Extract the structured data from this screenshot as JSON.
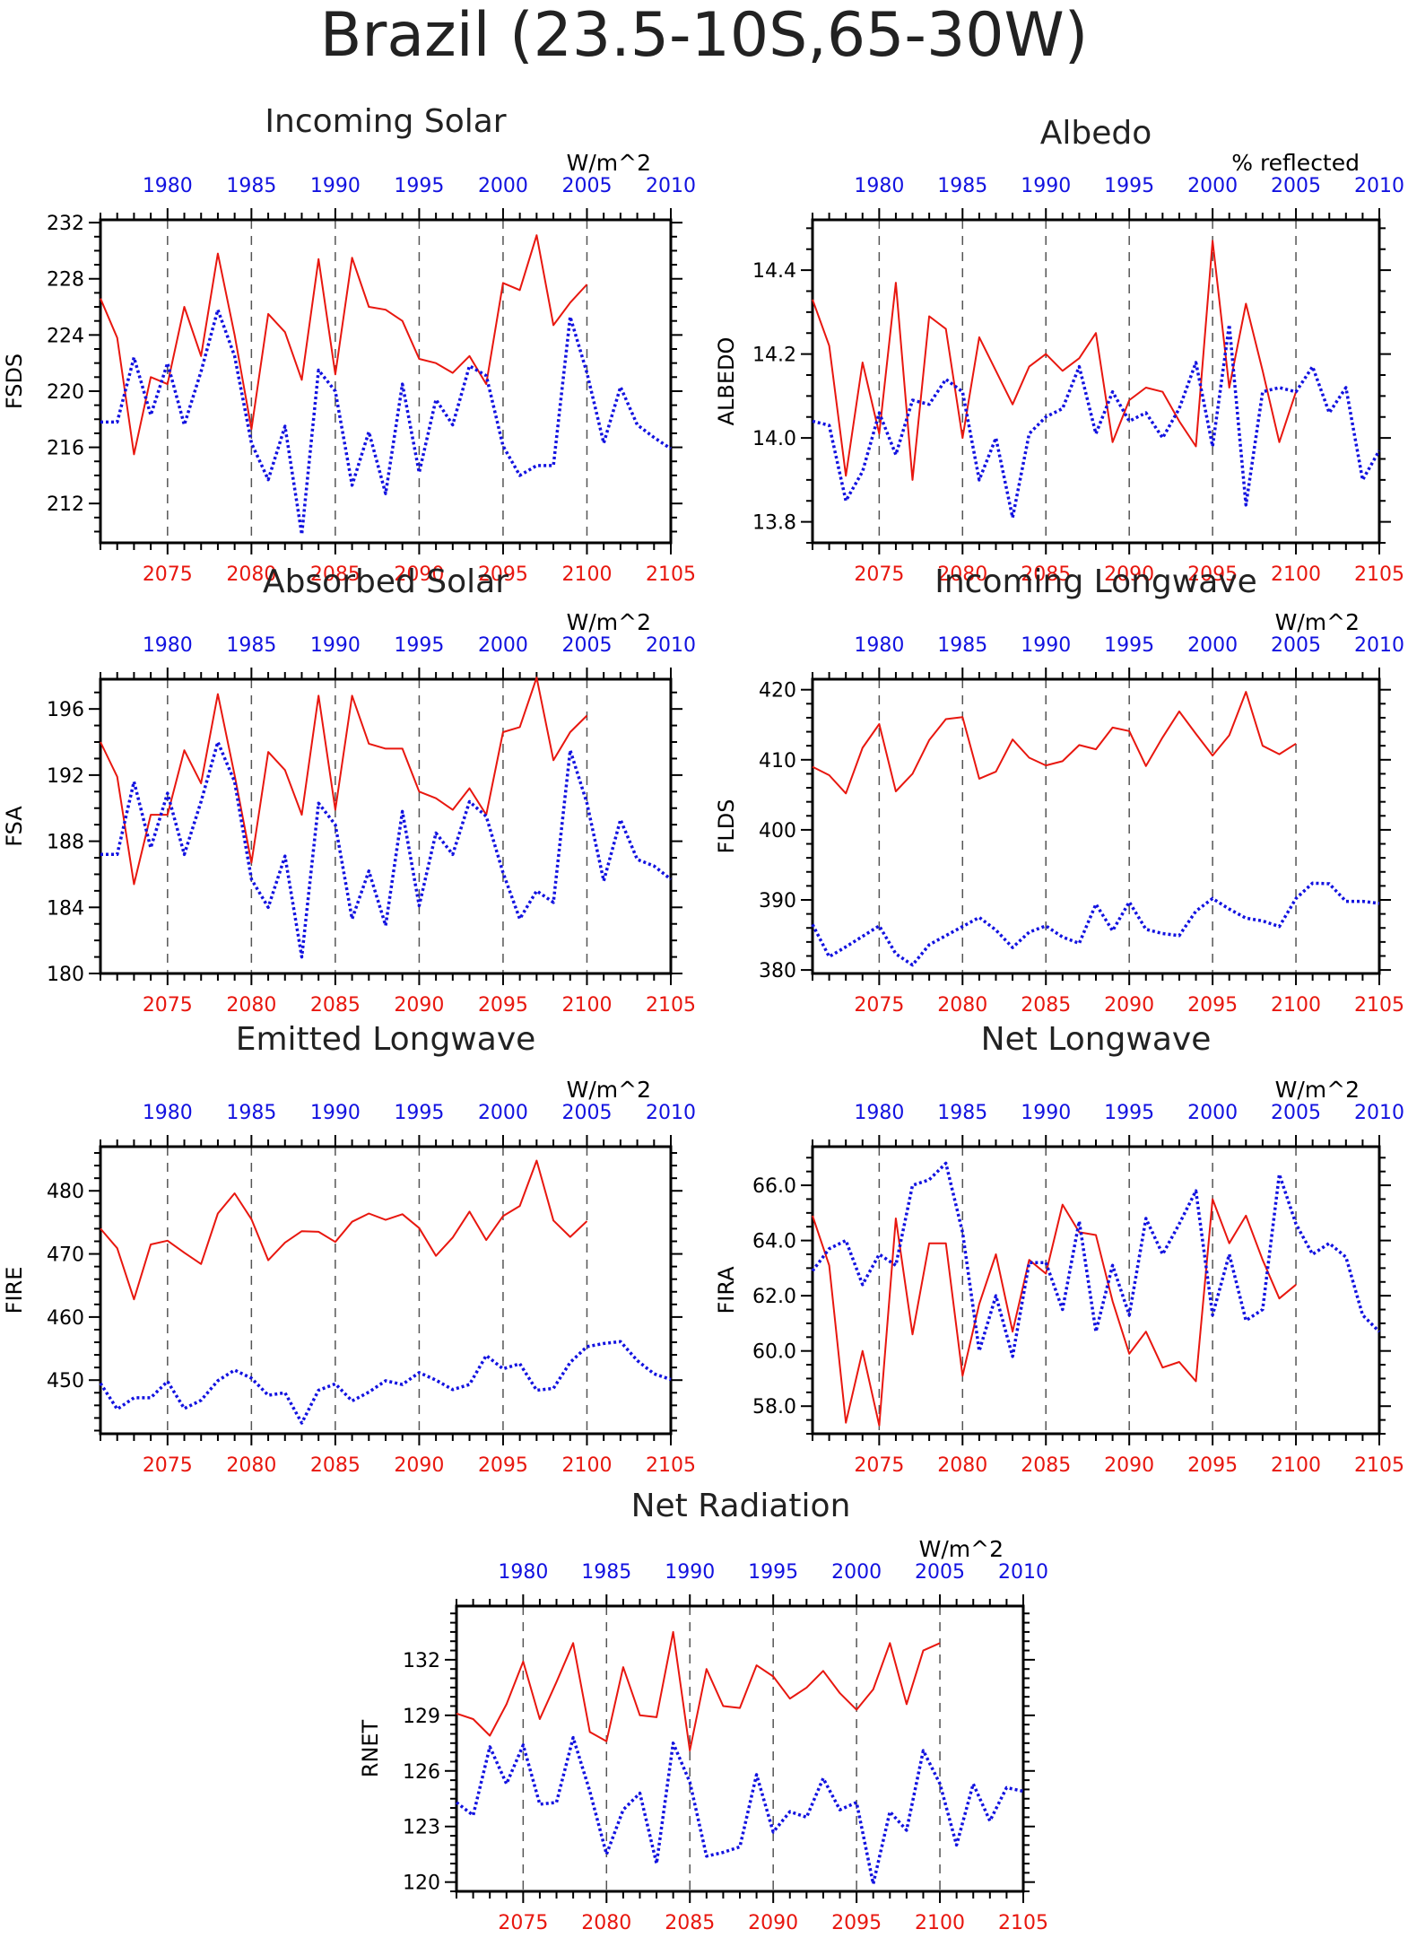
{
  "title": "Brazil (23.5-10S,65-30W)",
  "colors": {
    "future": "#e8170f",
    "historical": "#1212e0",
    "axis": "#000000"
  },
  "chart_data": [
    {
      "id": "fsds",
      "type": "line",
      "title": "Incoming Solar",
      "ylabel": "FSDS",
      "units": "W/m^2",
      "ylim": [
        209.2,
        232.2
      ],
      "yticks": [
        212,
        216,
        220,
        224,
        228,
        232
      ],
      "ytick_labels": [
        "212",
        "216",
        "220",
        "224",
        "228",
        "232"
      ],
      "yminor": 1,
      "xlim_bottom": [
        2071,
        2105
      ],
      "xticks_bottom": [
        2075,
        2080,
        2085,
        2090,
        2095,
        2100,
        2105
      ],
      "xlim_top": [
        1976,
        2010
      ],
      "xticks_top": [
        1980,
        1985,
        1990,
        1995,
        2000,
        2005,
        2010
      ],
      "series": [
        {
          "axis": "bottom",
          "style": "solid",
          "x_start": 2071,
          "values": [
            226.6,
            223.8,
            215.5,
            221.0,
            220.5,
            226.0,
            222.5,
            229.8,
            224.0,
            217.3,
            225.5,
            224.2,
            220.8,
            229.4,
            221.2,
            229.5,
            226.0,
            225.8,
            225.0,
            222.3,
            222.0,
            221.3,
            222.5,
            220.5,
            227.7,
            227.2,
            231.1,
            224.7,
            226.3,
            227.6
          ]
        },
        {
          "axis": "top",
          "style": "dotted",
          "x_start": 1976,
          "values": [
            217.8,
            217.8,
            222.4,
            218.3,
            222.0,
            217.6,
            221.4,
            225.8,
            222.5,
            216.3,
            213.7,
            217.5,
            209.8,
            221.5,
            220.0,
            213.3,
            217.1,
            212.7,
            220.5,
            214.2,
            219.4,
            217.6,
            221.8,
            221.1,
            216.1,
            214.0,
            214.7,
            214.7,
            225.3,
            221.3,
            216.3,
            220.3,
            217.6,
            216.7,
            215.9
          ]
        }
      ]
    },
    {
      "id": "albedo",
      "type": "line",
      "title": "Albedo",
      "ylabel": "ALBEDO",
      "units": "% reflected",
      "ylim": [
        13.75,
        14.52
      ],
      "yticks": [
        13.8,
        14.0,
        14.2,
        14.4
      ],
      "ytick_labels": [
        "13.8",
        "14.0",
        "14.2",
        "14.4"
      ],
      "yminor": 0.05,
      "xlim_bottom": [
        2071,
        2105
      ],
      "xticks_bottom": [
        2075,
        2080,
        2085,
        2090,
        2095,
        2100,
        2105
      ],
      "xlim_top": [
        1976,
        2010
      ],
      "xticks_top": [
        1980,
        1985,
        1990,
        1995,
        2000,
        2005,
        2010
      ],
      "series": [
        {
          "axis": "bottom",
          "style": "solid",
          "x_start": 2071,
          "values": [
            14.33,
            14.22,
            13.91,
            14.18,
            14.01,
            14.37,
            13.9,
            14.29,
            14.26,
            14.0,
            14.24,
            14.16,
            14.08,
            14.17,
            14.2,
            14.16,
            14.19,
            14.25,
            13.99,
            14.09,
            14.12,
            14.11,
            14.04,
            13.98,
            14.47,
            14.12,
            14.32,
            14.16,
            13.99,
            14.11
          ]
        },
        {
          "axis": "top",
          "style": "dotted",
          "x_start": 1976,
          "values": [
            14.04,
            14.03,
            13.85,
            13.92,
            14.06,
            13.96,
            14.09,
            14.08,
            14.14,
            14.11,
            13.9,
            14.0,
            13.81,
            14.01,
            14.05,
            14.07,
            14.17,
            14.01,
            14.11,
            14.04,
            14.06,
            14.0,
            14.07,
            14.18,
            13.98,
            14.27,
            13.84,
            14.11,
            14.12,
            14.11,
            14.17,
            14.06,
            14.12,
            13.9,
            13.97
          ]
        }
      ]
    },
    {
      "id": "fsa",
      "type": "line",
      "title": "Absorbed Solar",
      "ylabel": "FSA",
      "units": "W/m^2",
      "ylim": [
        180,
        197.8
      ],
      "yticks": [
        180,
        184,
        188,
        192,
        196
      ],
      "ytick_labels": [
        "180",
        "184",
        "188",
        "192",
        "196"
      ],
      "yminor": 1,
      "xlim_bottom": [
        2071,
        2105
      ],
      "xticks_bottom": [
        2075,
        2080,
        2085,
        2090,
        2095,
        2100,
        2105
      ],
      "xlim_top": [
        1976,
        2010
      ],
      "xticks_top": [
        1980,
        1985,
        1990,
        1995,
        2000,
        2005,
        2010
      ],
      "series": [
        {
          "axis": "bottom",
          "style": "solid",
          "x_start": 2071,
          "values": [
            194.0,
            191.9,
            185.4,
            189.6,
            189.6,
            193.5,
            191.5,
            196.9,
            192.0,
            186.7,
            193.4,
            192.3,
            189.6,
            196.8,
            189.9,
            196.8,
            193.9,
            193.6,
            193.6,
            191.0,
            190.6,
            189.9,
            191.2,
            189.6,
            194.6,
            194.9,
            197.9,
            192.9,
            194.6,
            195.6
          ]
        },
        {
          "axis": "top",
          "style": "dotted",
          "x_start": 1976,
          "values": [
            187.2,
            187.2,
            191.6,
            187.6,
            190.9,
            187.2,
            190.4,
            194.0,
            191.6,
            185.7,
            184.0,
            187.1,
            181.0,
            190.3,
            189.0,
            183.3,
            186.2,
            182.9,
            189.8,
            184.1,
            188.5,
            187.2,
            190.4,
            189.5,
            186.1,
            183.3,
            185.0,
            184.3,
            193.5,
            190.3,
            185.6,
            189.3,
            186.9,
            186.5,
            185.7
          ]
        }
      ]
    },
    {
      "id": "flds",
      "type": "line",
      "title": "Incoming Longwave",
      "ylabel": "FLDS",
      "units": "W/m^2",
      "ylim": [
        379.5,
        421.5
      ],
      "yticks": [
        380,
        390,
        400,
        410,
        420
      ],
      "ytick_labels": [
        "380",
        "390",
        "400",
        "410",
        "420"
      ],
      "yminor": 2,
      "xlim_bottom": [
        2071,
        2105
      ],
      "xticks_bottom": [
        2075,
        2080,
        2085,
        2090,
        2095,
        2100,
        2105
      ],
      "xlim_top": [
        1976,
        2010
      ],
      "xticks_top": [
        1980,
        1985,
        1990,
        1995,
        2000,
        2005,
        2010
      ],
      "series": [
        {
          "axis": "bottom",
          "style": "solid",
          "x_start": 2071,
          "values": [
            409.0,
            407.8,
            405.2,
            411.7,
            415.1,
            405.5,
            408.0,
            412.8,
            415.8,
            416.1,
            407.3,
            408.3,
            412.9,
            410.3,
            409.2,
            409.8,
            412.1,
            411.5,
            414.6,
            414.1,
            409.1,
            413.2,
            416.9,
            413.7,
            410.6,
            413.5,
            419.7,
            412.0,
            410.8,
            412.3
          ]
        },
        {
          "axis": "top",
          "style": "dotted",
          "x_start": 1976,
          "values": [
            386.5,
            381.9,
            383.3,
            384.8,
            386.3,
            382.3,
            380.7,
            383.6,
            384.9,
            386.2,
            387.5,
            385.7,
            383.2,
            385.4,
            386.3,
            384.7,
            383.8,
            389.4,
            385.6,
            389.7,
            385.8,
            385.2,
            384.9,
            388.4,
            390.2,
            388.7,
            387.4,
            387.0,
            386.2,
            390.2,
            392.4,
            392.3,
            389.8,
            389.8,
            389.5
          ]
        }
      ]
    },
    {
      "id": "fire",
      "type": "line",
      "title": "Emitted Longwave",
      "ylabel": "FIRE",
      "units": "W/m^2",
      "ylim": [
        441.5,
        487
      ],
      "yticks": [
        450,
        460,
        470,
        480
      ],
      "ytick_labels": [
        "450",
        "460",
        "470",
        "480"
      ],
      "yminor": 2,
      "xlim_bottom": [
        2071,
        2105
      ],
      "xticks_bottom": [
        2075,
        2080,
        2085,
        2090,
        2095,
        2100,
        2105
      ],
      "xlim_top": [
        1976,
        2010
      ],
      "xticks_top": [
        1980,
        1985,
        1990,
        1995,
        2000,
        2005,
        2010
      ],
      "series": [
        {
          "axis": "bottom",
          "style": "solid",
          "x_start": 2071,
          "values": [
            474.0,
            470.9,
            462.8,
            471.5,
            472.1,
            470.2,
            468.4,
            476.4,
            479.6,
            475.5,
            469.0,
            471.8,
            473.6,
            473.5,
            471.9,
            475.1,
            476.4,
            475.4,
            476.3,
            474.1,
            469.7,
            472.6,
            476.7,
            472.2,
            476.0,
            477.6,
            484.8,
            475.3,
            472.7,
            475.2
          ]
        },
        {
          "axis": "top",
          "style": "dotted",
          "x_start": 1976,
          "values": [
            449.5,
            445.4,
            447.2,
            447.2,
            449.8,
            445.5,
            446.8,
            449.9,
            451.6,
            450.3,
            447.6,
            448.0,
            443.2,
            448.4,
            449.4,
            446.7,
            448.1,
            449.9,
            449.3,
            451.2,
            450.0,
            448.5,
            449.3,
            453.9,
            451.8,
            452.6,
            448.4,
            448.7,
            452.8,
            455.3,
            455.8,
            456.1,
            453.1,
            451.0,
            450.1
          ]
        }
      ]
    },
    {
      "id": "fira",
      "type": "line",
      "title": "Net Longwave",
      "ylabel": "FIRA",
      "units": "W/m^2",
      "ylim": [
        57.0,
        67.4
      ],
      "yticks": [
        58.0,
        60.0,
        62.0,
        64.0,
        66.0
      ],
      "ytick_labels": [
        "58.0",
        "60.0",
        "62.0",
        "64.0",
        "66.0"
      ],
      "yminor": 0.5,
      "xlim_bottom": [
        2071,
        2105
      ],
      "xticks_bottom": [
        2075,
        2080,
        2085,
        2090,
        2095,
        2100,
        2105
      ],
      "xlim_top": [
        1976,
        2010
      ],
      "xticks_top": [
        1980,
        1985,
        1990,
        1995,
        2000,
        2005,
        2010
      ],
      "series": [
        {
          "axis": "bottom",
          "style": "solid",
          "x_start": 2071,
          "values": [
            64.9,
            63.1,
            57.4,
            60.0,
            57.3,
            64.8,
            60.6,
            63.9,
            63.9,
            59.1,
            61.7,
            63.5,
            60.7,
            63.3,
            62.8,
            65.3,
            64.3,
            64.2,
            61.8,
            59.9,
            60.7,
            59.4,
            59.6,
            58.9,
            65.5,
            63.9,
            64.9,
            63.3,
            61.9,
            62.4
          ]
        },
        {
          "axis": "top",
          "style": "dotted",
          "x_start": 1976,
          "values": [
            62.9,
            63.7,
            64.0,
            62.4,
            63.5,
            63.1,
            66.0,
            66.2,
            66.8,
            64.3,
            60.0,
            62.0,
            59.8,
            63.2,
            63.2,
            61.5,
            64.7,
            60.7,
            63.1,
            61.3,
            64.8,
            63.5,
            64.6,
            65.8,
            61.3,
            63.5,
            61.1,
            61.5,
            66.4,
            64.6,
            63.5,
            63.9,
            63.4,
            61.3,
            60.7
          ]
        }
      ]
    },
    {
      "id": "rnet",
      "type": "line",
      "title": "Net Radiation",
      "ylabel": "RNET",
      "units": "W/m^2",
      "ylim": [
        119.5,
        134.9
      ],
      "yticks": [
        120,
        123,
        126,
        129,
        132
      ],
      "ytick_labels": [
        "120",
        "123",
        "126",
        "129",
        "132"
      ],
      "yminor": 0.5,
      "xlim_bottom": [
        2071,
        2105
      ],
      "xticks_bottom": [
        2075,
        2080,
        2085,
        2090,
        2095,
        2100,
        2105
      ],
      "xlim_top": [
        1976,
        2010
      ],
      "xticks_top": [
        1980,
        1985,
        1990,
        1995,
        2000,
        2005,
        2010
      ],
      "series": [
        {
          "axis": "bottom",
          "style": "solid",
          "x_start": 2071,
          "values": [
            129.1,
            128.8,
            127.9,
            129.6,
            131.9,
            128.8,
            130.8,
            132.9,
            128.1,
            127.6,
            131.6,
            129.0,
            128.9,
            133.5,
            127.1,
            131.5,
            129.5,
            129.4,
            131.7,
            131.1,
            129.9,
            130.5,
            131.4,
            130.2,
            129.3,
            130.4,
            132.9,
            129.6,
            132.5,
            132.9
          ]
        },
        {
          "axis": "top",
          "style": "dotted",
          "x_start": 1976,
          "values": [
            124.3,
            123.6,
            127.3,
            125.3,
            127.4,
            124.2,
            124.3,
            127.8,
            124.9,
            121.5,
            123.9,
            124.8,
            121.0,
            127.5,
            125.4,
            121.4,
            121.6,
            121.9,
            125.8,
            122.7,
            123.8,
            123.5,
            125.6,
            123.9,
            124.3,
            119.9,
            123.8,
            122.8,
            127.1,
            125.3,
            122.0,
            125.3,
            123.3,
            125.1,
            124.9
          ]
        }
      ]
    }
  ]
}
